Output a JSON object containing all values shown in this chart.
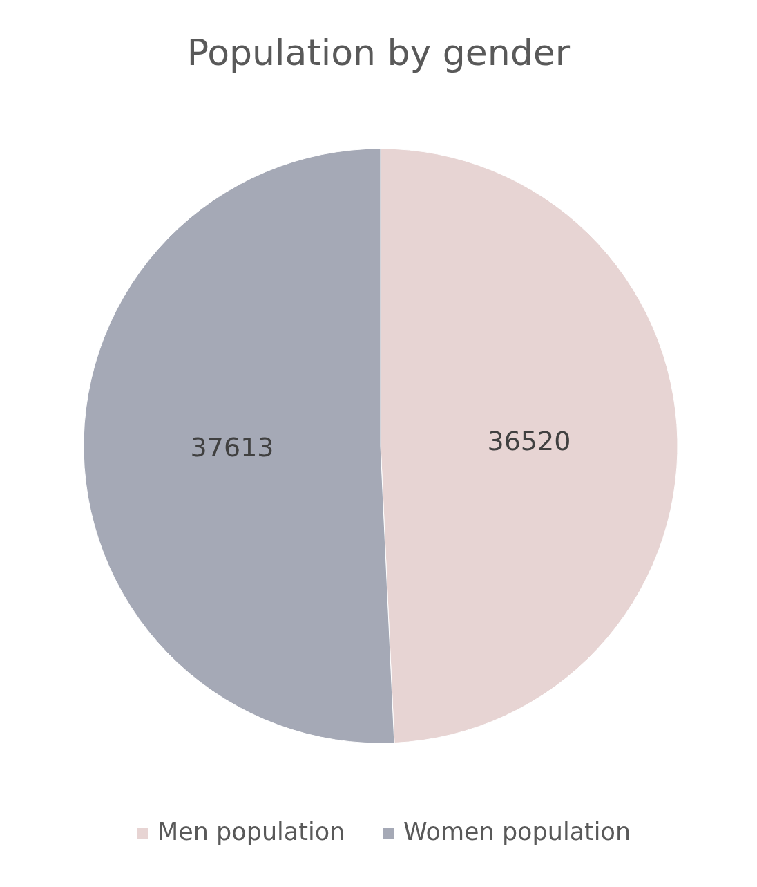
{
  "chart_data": {
    "type": "pie",
    "title": "Population by gender",
    "categories": [
      "Men population",
      "Women population"
    ],
    "values": [
      36520,
      37613
    ],
    "colors": [
      "#e7d4d3",
      "#a5a9b6"
    ],
    "data_labels": true,
    "legend": "bottom"
  }
}
